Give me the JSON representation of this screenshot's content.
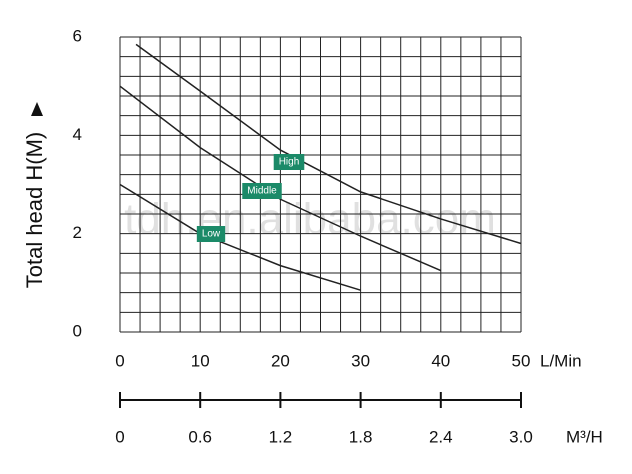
{
  "chart_data": {
    "type": "line",
    "y_title": "Total head H(M)",
    "x_unit": "L/Min",
    "x2_unit": "M³/H",
    "watermark": "tdh.en.alibaba.com",
    "xlim": [
      0,
      50
    ],
    "xticks": [
      0,
      10,
      20,
      30,
      40,
      50
    ],
    "x_minor_ticks": [
      0,
      2.5,
      5,
      7.5,
      10,
      12.5,
      15,
      17.5,
      20,
      22.5,
      25,
      27.5,
      30,
      32.5,
      35,
      37.5,
      40,
      42.5,
      45,
      47.5,
      50
    ],
    "ylim": [
      0,
      6
    ],
    "yticks": [
      0,
      2,
      4,
      6
    ],
    "y_minor_ticks": [
      0,
      0.4,
      0.8,
      1.2,
      1.6,
      2,
      2.4,
      2.8,
      3.2,
      3.6,
      4,
      4.4,
      4.8,
      5.2,
      5.6,
      6
    ],
    "x2lim": [
      0,
      3
    ],
    "x2ticks": [
      0,
      0.6,
      1.2,
      1.8,
      2.4,
      {
        "value": 3,
        "label": "3.0"
      }
    ],
    "grid": true,
    "label_color": "#1b8a68",
    "series": [
      {
        "name": "High",
        "color": "#222222",
        "x": [
          2,
          10,
          20,
          30,
          40,
          50
        ],
        "values": [
          5.85,
          4.9,
          3.7,
          2.85,
          2.3,
          1.8
        ]
      },
      {
        "name": "Middle",
        "color": "#222222",
        "x": [
          0,
          10,
          20,
          30,
          40
        ],
        "values": [
          5.0,
          3.75,
          2.7,
          1.95,
          1.25
        ]
      },
      {
        "name": "Low",
        "color": "#222222",
        "x": [
          0,
          10,
          20,
          30
        ],
        "values": [
          3.0,
          2.0,
          1.35,
          0.85
        ]
      }
    ]
  }
}
